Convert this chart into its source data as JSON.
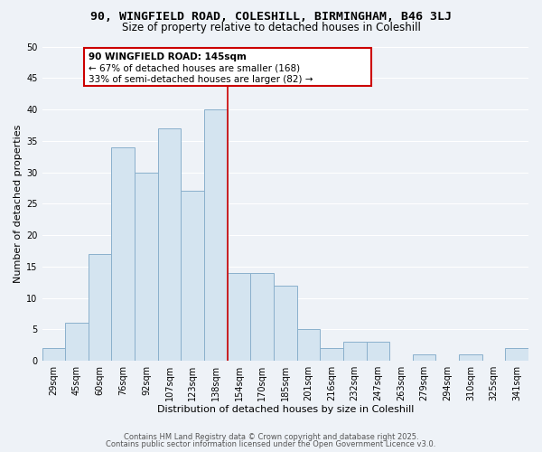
{
  "title1": "90, WINGFIELD ROAD, COLESHILL, BIRMINGHAM, B46 3LJ",
  "title2": "Size of property relative to detached houses in Coleshill",
  "xlabel": "Distribution of detached houses by size in Coleshill",
  "ylabel": "Number of detached properties",
  "bar_labels": [
    "29sqm",
    "45sqm",
    "60sqm",
    "76sqm",
    "92sqm",
    "107sqm",
    "123sqm",
    "138sqm",
    "154sqm",
    "170sqm",
    "185sqm",
    "201sqm",
    "216sqm",
    "232sqm",
    "247sqm",
    "263sqm",
    "279sqm",
    "294sqm",
    "310sqm",
    "325sqm",
    "341sqm"
  ],
  "bar_heights": [
    2,
    6,
    17,
    34,
    30,
    37,
    27,
    40,
    14,
    14,
    12,
    5,
    2,
    3,
    3,
    0,
    1,
    0,
    1,
    0,
    2
  ],
  "bar_color": "#d4e4f0",
  "bar_edge_color": "#8ab0cc",
  "vline_x_index": 7.5,
  "vline_color": "#cc0000",
  "annotation_title": "90 WINGFIELD ROAD: 145sqm",
  "annotation_line1": "← 67% of detached houses are smaller (168)",
  "annotation_line2": "33% of semi-detached houses are larger (82) →",
  "annotation_box_color": "#ffffff",
  "annotation_box_edge": "#cc0000",
  "ylim": [
    0,
    50
  ],
  "yticks": [
    0,
    5,
    10,
    15,
    20,
    25,
    30,
    35,
    40,
    45,
    50
  ],
  "bg_color": "#eef2f7",
  "footer1": "Contains HM Land Registry data © Crown copyright and database right 2025.",
  "footer2": "Contains public sector information licensed under the Open Government Licence v3.0.",
  "grid_color": "#ffffff",
  "title_fontsize": 9.5,
  "subtitle_fontsize": 8.5,
  "axis_label_fontsize": 8,
  "tick_fontsize": 7,
  "footer_fontsize": 6,
  "ann_fontsize": 7.5
}
